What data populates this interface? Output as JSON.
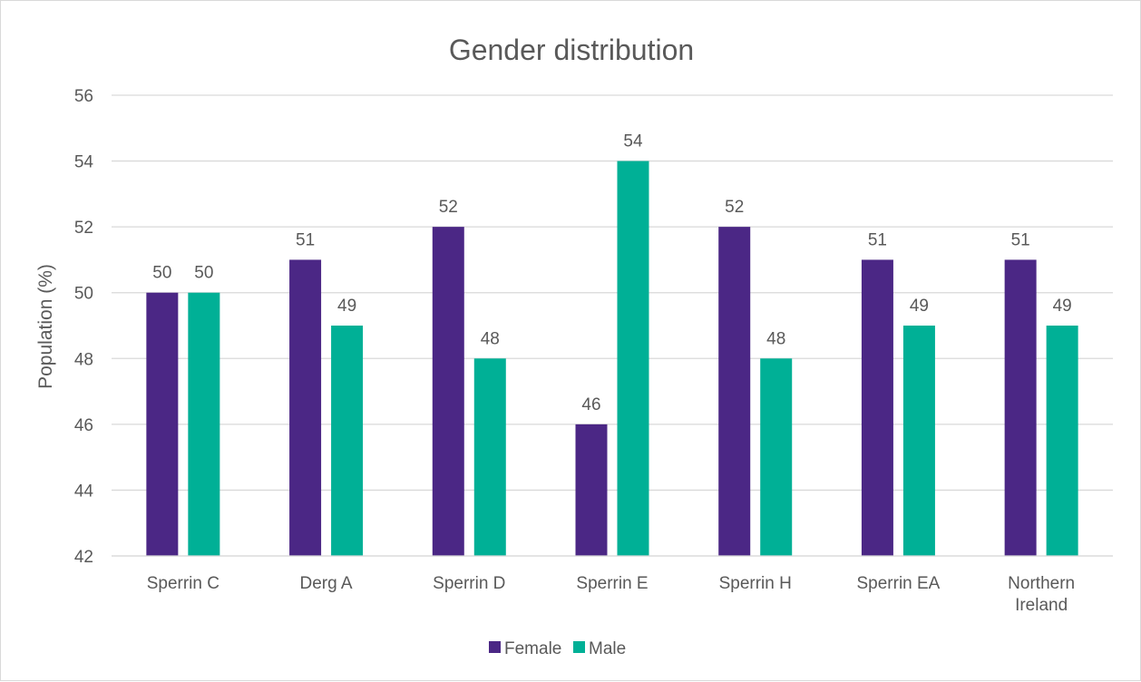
{
  "chart_data": {
    "type": "bar",
    "title": "Gender distribution",
    "xlabel": "",
    "ylabel": "Population (%)",
    "ylim": [
      42,
      56
    ],
    "yticks": [
      "42",
      "44",
      "46",
      "48",
      "50",
      "52",
      "54",
      "56"
    ],
    "categories": [
      [
        "Sperrin C"
      ],
      [
        "Derg A"
      ],
      [
        "Sperrin D"
      ],
      [
        "Sperrin E"
      ],
      [
        "Sperrin H"
      ],
      [
        "Sperrin EA"
      ],
      [
        "Northern",
        "Ireland"
      ]
    ],
    "series": [
      {
        "name": "Female",
        "color": "#4b2785",
        "values": [
          50,
          51,
          52,
          46,
          52,
          51,
          51
        ]
      },
      {
        "name": "Male",
        "color": "#00b096",
        "values": [
          50,
          49,
          48,
          54,
          48,
          49,
          49
        ]
      }
    ],
    "data_labels": true,
    "grid": true,
    "legend_position": "bottom"
  }
}
